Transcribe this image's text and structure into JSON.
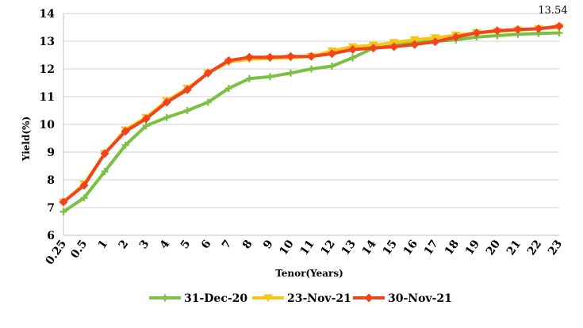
{
  "chart_data": {
    "type": "line",
    "xlabel": "Tenor(Years)",
    "ylabel": "Yield(%)",
    "ylim": [
      6,
      14
    ],
    "yticks": [
      6,
      7,
      8,
      9,
      10,
      11,
      12,
      13,
      14
    ],
    "grid": "horizontal",
    "legend_position": "bottom",
    "categories": [
      "0.25",
      "0.5",
      "1",
      "2",
      "3",
      "4",
      "5",
      "6",
      "7",
      "8",
      "9",
      "10",
      "11",
      "12",
      "13",
      "14",
      "15",
      "16",
      "17",
      "18",
      "19",
      "20",
      "21",
      "22",
      "23"
    ],
    "series": [
      {
        "name": "31-Dec-20",
        "color": "#7ac143",
        "marker": "plus",
        "values": [
          6.85,
          7.35,
          8.3,
          9.25,
          9.95,
          10.25,
          10.5,
          10.8,
          11.3,
          11.65,
          11.72,
          11.85,
          12.0,
          12.1,
          12.4,
          12.75,
          12.85,
          12.95,
          13.0,
          13.05,
          13.15,
          13.2,
          13.25,
          13.28,
          13.3
        ]
      },
      {
        "name": "23-Nov-21",
        "color": "#f5c518",
        "marker": "triangle-down",
        "values": [
          7.2,
          7.85,
          8.95,
          9.8,
          10.25,
          10.85,
          11.3,
          11.85,
          12.25,
          12.35,
          12.38,
          12.4,
          12.45,
          12.65,
          12.8,
          12.85,
          12.95,
          13.05,
          13.12,
          13.22,
          13.3,
          13.35,
          13.4,
          13.45,
          13.5
        ]
      },
      {
        "name": "30-Nov-21",
        "color": "#f0441c",
        "marker": "diamond",
        "values": [
          7.2,
          7.8,
          8.95,
          9.75,
          10.2,
          10.8,
          11.25,
          11.85,
          12.3,
          12.42,
          12.42,
          12.45,
          12.45,
          12.55,
          12.7,
          12.75,
          12.8,
          12.88,
          12.98,
          13.15,
          13.3,
          13.38,
          13.42,
          13.45,
          13.54
        ]
      }
    ],
    "annotations": [
      {
        "series": "30-Nov-21",
        "category": "23",
        "text": "13.54"
      }
    ]
  }
}
